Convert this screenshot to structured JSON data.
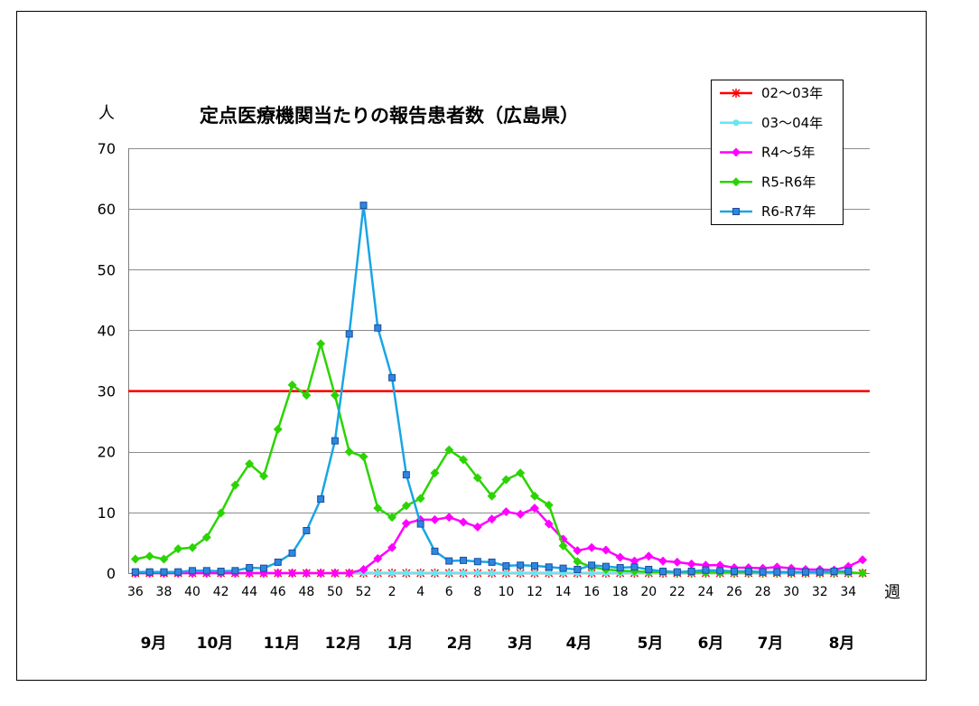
{
  "chart_data": {
    "type": "line",
    "title": "定点医療機関当たりの報告患者数（広島県）",
    "ylabel": "人",
    "xlabel": "週",
    "ylim": [
      0,
      70
    ],
    "yticks": [
      0,
      10,
      20,
      30,
      40,
      50,
      60,
      70
    ],
    "grid": true,
    "legend_position": "top-right",
    "x": [
      36,
      37,
      38,
      39,
      40,
      41,
      42,
      43,
      44,
      45,
      46,
      47,
      48,
      49,
      50,
      51,
      52,
      1,
      2,
      3,
      4,
      5,
      6,
      7,
      8,
      9,
      10,
      11,
      12,
      13,
      14,
      15,
      16,
      17,
      18,
      19,
      20,
      21,
      22,
      23,
      24,
      25,
      26,
      27,
      28,
      29,
      30,
      31,
      32,
      33,
      34,
      35
    ],
    "xtick_labels": [
      "36",
      "38",
      "40",
      "42",
      "44",
      "46",
      "48",
      "50",
      "52",
      "2",
      "4",
      "6",
      "8",
      "10",
      "12",
      "14",
      "16",
      "18",
      "20",
      "22",
      "24",
      "26",
      "28",
      "30",
      "32",
      "34"
    ],
    "month_labels": [
      "9月",
      "10月",
      "11月",
      "12月",
      "1月",
      "2月",
      "3月",
      "4月",
      "5月",
      "6月",
      "7月",
      "8月"
    ],
    "reference_lines": [
      {
        "y": 30,
        "color": "#ff0000"
      }
    ],
    "series": [
      {
        "name": "02～03年",
        "color": "#ff0000",
        "marker": "asterisk",
        "values": [
          0,
          0,
          0,
          0,
          0,
          0,
          0,
          0,
          0,
          0,
          0,
          0,
          0,
          0,
          0,
          0,
          0,
          0,
          0,
          0,
          0,
          0,
          0,
          0,
          0,
          0,
          0,
          0,
          0,
          0,
          0,
          0,
          0,
          0,
          0,
          0,
          0,
          0,
          0,
          0,
          0,
          0,
          0,
          0,
          0,
          0,
          0,
          0,
          0,
          0,
          0,
          0
        ]
      },
      {
        "name": "03～04年",
        "color": "#66e6f2",
        "marker": "circle",
        "values": [
          0,
          0,
          0,
          0,
          0,
          0,
          0,
          0,
          0,
          0,
          0,
          0,
          0,
          0,
          0,
          0,
          0,
          0,
          0,
          0,
          0,
          0,
          0,
          0,
          0,
          0,
          0,
          0,
          0,
          0,
          0,
          0,
          0,
          0,
          0,
          0,
          0,
          0,
          0,
          0,
          0,
          0,
          0,
          0,
          0,
          0,
          0,
          0,
          0,
          0,
          0,
          0
        ]
      },
      {
        "name": "R4～5年",
        "color": "#ff00ff",
        "marker": "diamond",
        "values": [
          0,
          0,
          0,
          0,
          0,
          0,
          0,
          0,
          0,
          0,
          0,
          0,
          0,
          0,
          0,
          0,
          0.6,
          2.4,
          4.2,
          8.2,
          8.8,
          8.8,
          9.2,
          8.4,
          7.6,
          8.9,
          10.1,
          9.7,
          10.7,
          8.1,
          5.6,
          3.7,
          4.2,
          3.8,
          2.6,
          2.0,
          2.8,
          2.0,
          1.8,
          1.5,
          1.3,
          1.3,
          0.9,
          0.9,
          0.8,
          1.0,
          0.8,
          0.6,
          0.6,
          0.5,
          1.1,
          2.2
        ]
      },
      {
        "name": "R5-R6年",
        "color": "#2bd400",
        "marker": "diamond",
        "values": [
          2.3,
          2.8,
          2.3,
          4.0,
          4.2,
          5.9,
          9.9,
          14.5,
          18.0,
          16.0,
          23.7,
          31.0,
          29.3,
          37.8,
          29.3,
          20.0,
          19.2,
          10.7,
          9.2,
          11.1,
          12.3,
          16.5,
          20.3,
          18.7,
          15.7,
          12.7,
          15.4,
          16.5,
          12.7,
          11.2,
          4.5,
          1.9,
          1.0,
          0.6,
          0.4,
          0.3,
          0.2,
          0.2,
          0.1,
          0.1,
          0.1,
          0.1,
          0.1,
          0.1,
          0.1,
          0.1,
          0.1,
          0.1,
          0.1,
          0.1,
          0.1,
          0.0
        ]
      },
      {
        "name": "R6-R7年",
        "color": "#19a5e6",
        "marker": "square",
        "marker_color": "#2f86e0",
        "marker_edge": "#1a4f9c",
        "values": [
          0.2,
          0.2,
          0.2,
          0.2,
          0.4,
          0.4,
          0.3,
          0.4,
          0.9,
          0.8,
          1.8,
          3.3,
          7.0,
          12.2,
          21.8,
          39.4,
          60.6,
          40.4,
          32.2,
          16.2,
          8.1,
          3.6,
          2.0,
          2.1,
          1.9,
          1.8,
          1.2,
          1.3,
          1.2,
          1.0,
          0.8,
          0.6,
          1.3,
          1.1,
          0.9,
          1.0,
          0.6,
          0.3,
          0.2,
          0.3,
          0.5,
          0.4,
          0.3,
          0.3,
          0.2,
          0.2,
          0.2,
          0.2,
          0.2,
          0.3,
          0.3,
          null
        ]
      }
    ]
  }
}
